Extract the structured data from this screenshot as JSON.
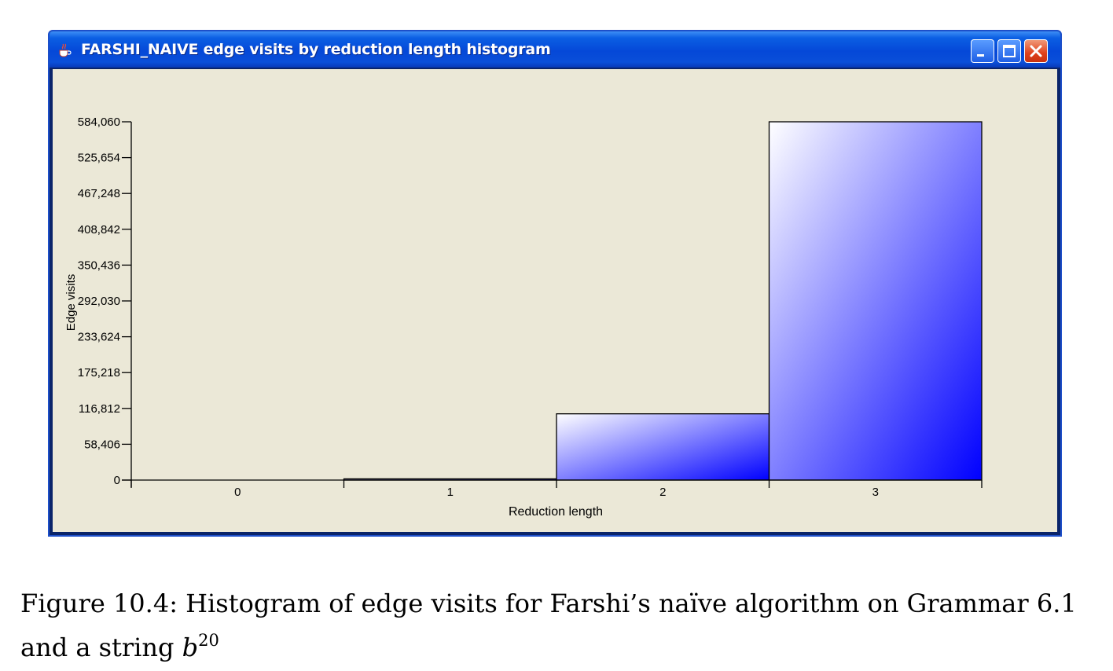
{
  "window": {
    "title": "FARSHI_NAIVE edge visits by reduction length histogram",
    "title_color": "#ffffff",
    "titlebar_color": "#0548d8",
    "client_bg": "#ebe8d7"
  },
  "chart_data": {
    "type": "bar",
    "categories": [
      "0",
      "1",
      "2",
      "3"
    ],
    "values": [
      0,
      2000,
      108000,
      584060
    ],
    "xlabel": "Reduction length",
    "ylabel": "Edge visits",
    "ylim": [
      0,
      584060
    ],
    "yticks": [
      "0",
      "58,406",
      "116,812",
      "175,218",
      "233,624",
      "292,030",
      "350,436",
      "408,842",
      "467,248",
      "525,654",
      "584,060"
    ],
    "ytick_values": [
      0,
      58406,
      116812,
      175218,
      233624,
      292030,
      350436,
      408842,
      467248,
      525654,
      584060
    ],
    "grid": false,
    "bar_gradient": [
      "#ffffff",
      "#0000ff"
    ]
  },
  "caption": {
    "prefix": "Figure 10.4: Histogram of edge visits for Farshi’s naïve algorithm on Grammar 6.1 and a string",
    "variable": "b",
    "exponent": "20"
  }
}
